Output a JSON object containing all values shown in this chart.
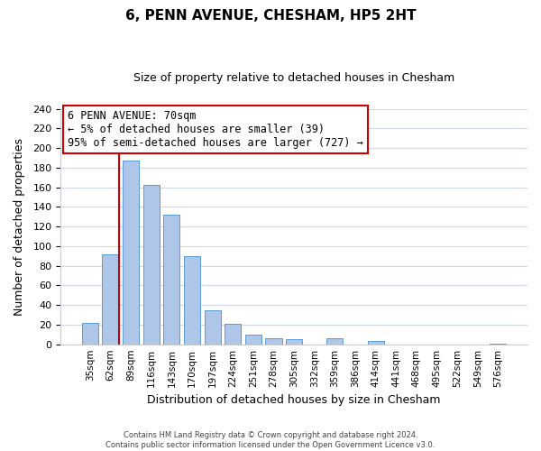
{
  "title": "6, PENN AVENUE, CHESHAM, HP5 2HT",
  "subtitle": "Size of property relative to detached houses in Chesham",
  "xlabel": "Distribution of detached houses by size in Chesham",
  "ylabel": "Number of detached properties",
  "bar_labels": [
    "35sqm",
    "62sqm",
    "89sqm",
    "116sqm",
    "143sqm",
    "170sqm",
    "197sqm",
    "224sqm",
    "251sqm",
    "278sqm",
    "305sqm",
    "332sqm",
    "359sqm",
    "386sqm",
    "414sqm",
    "441sqm",
    "468sqm",
    "495sqm",
    "522sqm",
    "549sqm",
    "576sqm"
  ],
  "bar_values": [
    22,
    92,
    187,
    162,
    132,
    90,
    35,
    21,
    10,
    6,
    5,
    0,
    6,
    0,
    3,
    0,
    0,
    0,
    0,
    0,
    1
  ],
  "bar_color": "#aec6e8",
  "bar_edge_color": "#5b9bd5",
  "ylim": [
    0,
    240
  ],
  "yticks": [
    0,
    20,
    40,
    60,
    80,
    100,
    120,
    140,
    160,
    180,
    200,
    220,
    240
  ],
  "red_line_index": 1.5,
  "annotation_title": "6 PENN AVENUE: 70sqm",
  "annotation_line1": "← 5% of detached houses are smaller (39)",
  "annotation_line2": "95% of semi-detached houses are larger (727) →",
  "annotation_box_color": "#ffffff",
  "annotation_box_edge": "#cc0000",
  "footer_line1": "Contains HM Land Registry data © Crown copyright and database right 2024.",
  "footer_line2": "Contains public sector information licensed under the Open Government Licence v3.0.",
  "background_color": "#ffffff",
  "grid_color": "#d0d8e8"
}
